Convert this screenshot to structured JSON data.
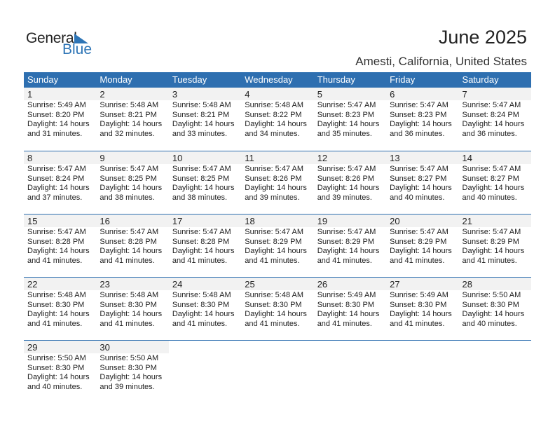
{
  "logo": {
    "text_general": "General",
    "text_blue": "Blue",
    "accent": "#2e75b6"
  },
  "title": "June 2025",
  "location": "Amesti, California, United States",
  "colors": {
    "header_bg": "#2e6fb0",
    "date_band": "#f2f2f2"
  },
  "weekdays": [
    "Sunday",
    "Monday",
    "Tuesday",
    "Wednesday",
    "Thursday",
    "Friday",
    "Saturday"
  ],
  "weeks": [
    [
      {
        "day": "1",
        "sunrise": "Sunrise: 5:49 AM",
        "sunset": "Sunset: 8:20 PM",
        "daylight": "Daylight: 14 hours",
        "minutes": "and 31 minutes."
      },
      {
        "day": "2",
        "sunrise": "Sunrise: 5:48 AM",
        "sunset": "Sunset: 8:21 PM",
        "daylight": "Daylight: 14 hours",
        "minutes": "and 32 minutes."
      },
      {
        "day": "3",
        "sunrise": "Sunrise: 5:48 AM",
        "sunset": "Sunset: 8:21 PM",
        "daylight": "Daylight: 14 hours",
        "minutes": "and 33 minutes."
      },
      {
        "day": "4",
        "sunrise": "Sunrise: 5:48 AM",
        "sunset": "Sunset: 8:22 PM",
        "daylight": "Daylight: 14 hours",
        "minutes": "and 34 minutes."
      },
      {
        "day": "5",
        "sunrise": "Sunrise: 5:47 AM",
        "sunset": "Sunset: 8:23 PM",
        "daylight": "Daylight: 14 hours",
        "minutes": "and 35 minutes."
      },
      {
        "day": "6",
        "sunrise": "Sunrise: 5:47 AM",
        "sunset": "Sunset: 8:23 PM",
        "daylight": "Daylight: 14 hours",
        "minutes": "and 36 minutes."
      },
      {
        "day": "7",
        "sunrise": "Sunrise: 5:47 AM",
        "sunset": "Sunset: 8:24 PM",
        "daylight": "Daylight: 14 hours",
        "minutes": "and 36 minutes."
      }
    ],
    [
      {
        "day": "8",
        "sunrise": "Sunrise: 5:47 AM",
        "sunset": "Sunset: 8:24 PM",
        "daylight": "Daylight: 14 hours",
        "minutes": "and 37 minutes."
      },
      {
        "day": "9",
        "sunrise": "Sunrise: 5:47 AM",
        "sunset": "Sunset: 8:25 PM",
        "daylight": "Daylight: 14 hours",
        "minutes": "and 38 minutes."
      },
      {
        "day": "10",
        "sunrise": "Sunrise: 5:47 AM",
        "sunset": "Sunset: 8:25 PM",
        "daylight": "Daylight: 14 hours",
        "minutes": "and 38 minutes."
      },
      {
        "day": "11",
        "sunrise": "Sunrise: 5:47 AM",
        "sunset": "Sunset: 8:26 PM",
        "daylight": "Daylight: 14 hours",
        "minutes": "and 39 minutes."
      },
      {
        "day": "12",
        "sunrise": "Sunrise: 5:47 AM",
        "sunset": "Sunset: 8:26 PM",
        "daylight": "Daylight: 14 hours",
        "minutes": "and 39 minutes."
      },
      {
        "day": "13",
        "sunrise": "Sunrise: 5:47 AM",
        "sunset": "Sunset: 8:27 PM",
        "daylight": "Daylight: 14 hours",
        "minutes": "and 40 minutes."
      },
      {
        "day": "14",
        "sunrise": "Sunrise: 5:47 AM",
        "sunset": "Sunset: 8:27 PM",
        "daylight": "Daylight: 14 hours",
        "minutes": "and 40 minutes."
      }
    ],
    [
      {
        "day": "15",
        "sunrise": "Sunrise: 5:47 AM",
        "sunset": "Sunset: 8:28 PM",
        "daylight": "Daylight: 14 hours",
        "minutes": "and 41 minutes."
      },
      {
        "day": "16",
        "sunrise": "Sunrise: 5:47 AM",
        "sunset": "Sunset: 8:28 PM",
        "daylight": "Daylight: 14 hours",
        "minutes": "and 41 minutes."
      },
      {
        "day": "17",
        "sunrise": "Sunrise: 5:47 AM",
        "sunset": "Sunset: 8:28 PM",
        "daylight": "Daylight: 14 hours",
        "minutes": "and 41 minutes."
      },
      {
        "day": "18",
        "sunrise": "Sunrise: 5:47 AM",
        "sunset": "Sunset: 8:29 PM",
        "daylight": "Daylight: 14 hours",
        "minutes": "and 41 minutes."
      },
      {
        "day": "19",
        "sunrise": "Sunrise: 5:47 AM",
        "sunset": "Sunset: 8:29 PM",
        "daylight": "Daylight: 14 hours",
        "minutes": "and 41 minutes."
      },
      {
        "day": "20",
        "sunrise": "Sunrise: 5:47 AM",
        "sunset": "Sunset: 8:29 PM",
        "daylight": "Daylight: 14 hours",
        "minutes": "and 41 minutes."
      },
      {
        "day": "21",
        "sunrise": "Sunrise: 5:47 AM",
        "sunset": "Sunset: 8:29 PM",
        "daylight": "Daylight: 14 hours",
        "minutes": "and 41 minutes."
      }
    ],
    [
      {
        "day": "22",
        "sunrise": "Sunrise: 5:48 AM",
        "sunset": "Sunset: 8:30 PM",
        "daylight": "Daylight: 14 hours",
        "minutes": "and 41 minutes."
      },
      {
        "day": "23",
        "sunrise": "Sunrise: 5:48 AM",
        "sunset": "Sunset: 8:30 PM",
        "daylight": "Daylight: 14 hours",
        "minutes": "and 41 minutes."
      },
      {
        "day": "24",
        "sunrise": "Sunrise: 5:48 AM",
        "sunset": "Sunset: 8:30 PM",
        "daylight": "Daylight: 14 hours",
        "minutes": "and 41 minutes."
      },
      {
        "day": "25",
        "sunrise": "Sunrise: 5:48 AM",
        "sunset": "Sunset: 8:30 PM",
        "daylight": "Daylight: 14 hours",
        "minutes": "and 41 minutes."
      },
      {
        "day": "26",
        "sunrise": "Sunrise: 5:49 AM",
        "sunset": "Sunset: 8:30 PM",
        "daylight": "Daylight: 14 hours",
        "minutes": "and 41 minutes."
      },
      {
        "day": "27",
        "sunrise": "Sunrise: 5:49 AM",
        "sunset": "Sunset: 8:30 PM",
        "daylight": "Daylight: 14 hours",
        "minutes": "and 41 minutes."
      },
      {
        "day": "28",
        "sunrise": "Sunrise: 5:50 AM",
        "sunset": "Sunset: 8:30 PM",
        "daylight": "Daylight: 14 hours",
        "minutes": "and 40 minutes."
      }
    ],
    [
      {
        "day": "29",
        "sunrise": "Sunrise: 5:50 AM",
        "sunset": "Sunset: 8:30 PM",
        "daylight": "Daylight: 14 hours",
        "minutes": "and 40 minutes."
      },
      {
        "day": "30",
        "sunrise": "Sunrise: 5:50 AM",
        "sunset": "Sunset: 8:30 PM",
        "daylight": "Daylight: 14 hours",
        "minutes": "and 39 minutes."
      },
      null,
      null,
      null,
      null,
      null
    ]
  ]
}
